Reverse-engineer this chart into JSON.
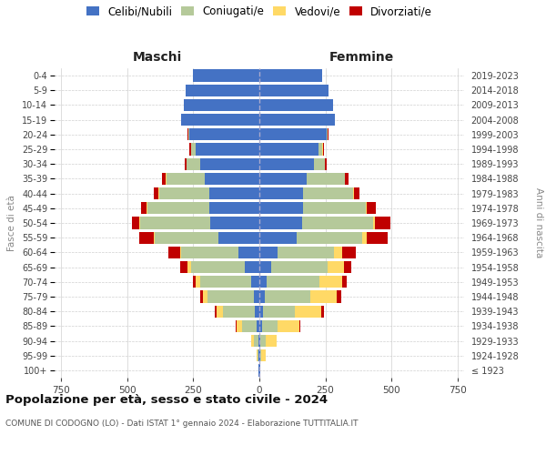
{
  "age_groups": [
    "100+",
    "95-99",
    "90-94",
    "85-89",
    "80-84",
    "75-79",
    "70-74",
    "65-69",
    "60-64",
    "55-59",
    "50-54",
    "45-49",
    "40-44",
    "35-39",
    "30-34",
    "25-29",
    "20-24",
    "15-19",
    "10-14",
    "5-9",
    "0-4"
  ],
  "birth_years": [
    "≤ 1923",
    "1924-1928",
    "1929-1933",
    "1934-1938",
    "1939-1943",
    "1944-1948",
    "1949-1953",
    "1954-1958",
    "1959-1963",
    "1964-1968",
    "1969-1973",
    "1974-1978",
    "1979-1983",
    "1984-1988",
    "1989-1993",
    "1994-1998",
    "1999-2003",
    "2004-2008",
    "2009-2013",
    "2014-2018",
    "2019-2023"
  ],
  "males": {
    "celibi": [
      2,
      4,
      5,
      10,
      18,
      22,
      30,
      55,
      80,
      155,
      185,
      190,
      190,
      205,
      225,
      240,
      265,
      295,
      285,
      278,
      252
    ],
    "coniugati": [
      0,
      3,
      15,
      55,
      120,
      175,
      195,
      205,
      215,
      240,
      265,
      235,
      190,
      148,
      50,
      18,
      4,
      2,
      0,
      0,
      0
    ],
    "vedovi": [
      0,
      2,
      10,
      22,
      25,
      18,
      15,
      12,
      5,
      5,
      3,
      2,
      2,
      2,
      2,
      2,
      0,
      0,
      0,
      0,
      0
    ],
    "divorziati": [
      0,
      0,
      0,
      3,
      5,
      8,
      12,
      28,
      45,
      55,
      28,
      22,
      17,
      12,
      6,
      5,
      2,
      0,
      0,
      0,
      0
    ]
  },
  "females": {
    "nubili": [
      2,
      3,
      5,
      10,
      15,
      20,
      28,
      45,
      70,
      140,
      162,
      165,
      165,
      180,
      205,
      225,
      255,
      285,
      278,
      263,
      238
    ],
    "coniugate": [
      0,
      3,
      18,
      58,
      118,
      172,
      198,
      212,
      212,
      248,
      268,
      238,
      190,
      143,
      42,
      14,
      4,
      2,
      0,
      0,
      0
    ],
    "vedove": [
      3,
      18,
      42,
      82,
      102,
      102,
      88,
      62,
      30,
      18,
      8,
      5,
      3,
      2,
      2,
      2,
      0,
      0,
      0,
      0,
      0
    ],
    "divorziate": [
      0,
      0,
      2,
      5,
      10,
      15,
      18,
      28,
      52,
      78,
      58,
      32,
      22,
      12,
      5,
      2,
      2,
      0,
      0,
      0,
      0
    ]
  },
  "colors": {
    "celibi_nubili": "#4472C4",
    "coniugati": "#B5C99A",
    "vedovi": "#FFD966",
    "divorziati": "#C00000"
  },
  "title": "Popolazione per età, sesso e stato civile - 2024",
  "subtitle": "COMUNE DI CODOGNO (LO) - Dati ISTAT 1° gennaio 2024 - Elaborazione TUTTITALIA.IT",
  "label_maschi": "Maschi",
  "label_femmine": "Femmine",
  "ylabel_left": "Fasce di età",
  "ylabel_right": "Anni di nascita",
  "xlim": 775,
  "background_color": "#ffffff",
  "grid_color": "#d0d0d0",
  "legend_labels": [
    "Celibi/Nubili",
    "Coniugati/e",
    "Vedovi/e",
    "Divorziati/e"
  ]
}
